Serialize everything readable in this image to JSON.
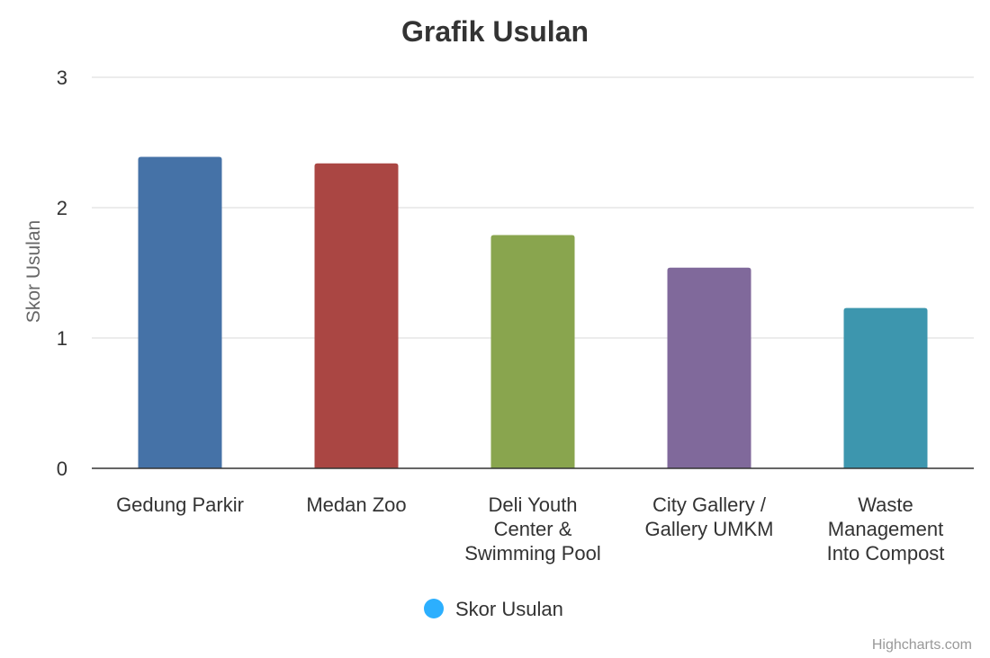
{
  "chart_data": {
    "type": "bar",
    "title": "Grafik Usulan",
    "ylabel": "Skor Usulan",
    "ylim": [
      0,
      3
    ],
    "yticks": [
      0,
      1,
      2,
      3
    ],
    "grid": true,
    "legend_position": "bottom-center",
    "categories": [
      "Gedung Parkir",
      "Medan Zoo",
      "Deli Youth Center & Swimming Pool",
      "City Gallery / Gallery UMKM",
      "Waste Management Into Compost"
    ],
    "category_lines": [
      [
        "Gedung Parkir"
      ],
      [
        "Medan Zoo"
      ],
      [
        "Deli Youth",
        "Center &",
        "Swimming Pool"
      ],
      [
        "City Gallery /",
        "Gallery UMKM"
      ],
      [
        "Waste",
        "Management",
        "Into Compost"
      ]
    ],
    "series": [
      {
        "name": "Skor Usulan",
        "values": [
          2.39,
          2.34,
          1.79,
          1.54,
          1.23
        ],
        "legend_color": "#2caffe"
      }
    ],
    "bar_colors": [
      "#4572a7",
      "#aa4643",
      "#89a54e",
      "#80699b",
      "#3d96ae"
    ],
    "credit": "Highcharts.com"
  }
}
